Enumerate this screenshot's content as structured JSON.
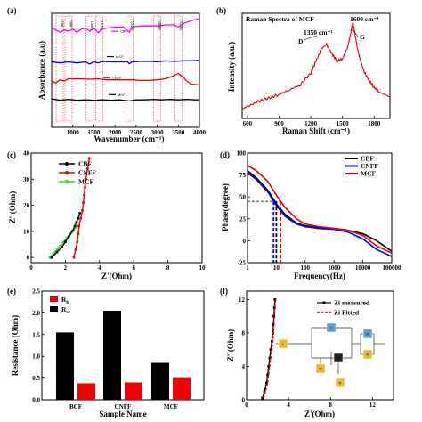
{
  "chart_data": [
    {
      "panel": "(a)",
      "type": "line",
      "xlabel": "Wavenumber (cm⁻¹)",
      "ylabel": "Absorbance (a.u)",
      "xlim": [
        500,
        4000
      ],
      "xticks": [
        1000,
        1500,
        2000,
        2500,
        3000,
        3500,
        4000
      ],
      "peak_labels": [
        {
          "x": 690,
          "label": "(690)"
        },
        {
          "x": 900,
          "label": "(900)"
        },
        {
          "x": 1400,
          "label": "(1400)"
        },
        {
          "x": 1626,
          "label": "(1626)"
        },
        {
          "x": 2340,
          "label": "(2340)"
        },
        {
          "x": 3000,
          "label": "(3000)"
        },
        {
          "x": 3500,
          "label": "(3500)"
        }
      ],
      "series": [
        {
          "name": "CBF",
          "color": "#ff00ff",
          "offset": 4.2,
          "x": [
            500,
            600,
            700,
            800,
            900,
            1000,
            1100,
            1200,
            1300,
            1400,
            1500,
            1600,
            1700,
            1800,
            2000,
            2200,
            2340,
            2400,
            2600,
            2800,
            3000,
            3200,
            3400,
            3500,
            3600,
            3800,
            4000
          ],
          "y": [
            0.55,
            0.4,
            0.3,
            0.42,
            0.35,
            0.45,
            0.3,
            0.45,
            0.5,
            0.35,
            0.5,
            0.28,
            0.45,
            0.5,
            0.55,
            0.55,
            0.3,
            0.55,
            0.6,
            0.6,
            0.6,
            0.65,
            0.65,
            0.55,
            0.7,
            0.85,
            0.95
          ]
        },
        {
          "name": "MCF",
          "color": "#0000ee",
          "offset": 3.0,
          "x": [
            500,
            700,
            900,
            1100,
            1300,
            1400,
            1500,
            1600,
            1700,
            1900,
            2100,
            2300,
            2340,
            2400,
            2600,
            2800,
            3000,
            3200,
            3400,
            3600,
            3800,
            4000
          ],
          "y": [
            0.1,
            0.05,
            0.1,
            0.05,
            0.1,
            0.0,
            0.1,
            0.05,
            0.12,
            0.1,
            0.1,
            0.1,
            0.0,
            0.1,
            0.12,
            0.12,
            0.1,
            0.15,
            0.12,
            0.15,
            0.15,
            0.18
          ]
        },
        {
          "name": "CNFF",
          "color": "#ee0000",
          "offset": 2.0,
          "x": [
            500,
            600,
            700,
            800,
            900,
            1000,
            1200,
            1400,
            1600,
            1800,
            2000,
            2200,
            2400,
            2600,
            2800,
            3000,
            3200,
            3400,
            3500,
            3600,
            3700,
            3800,
            4000
          ],
          "y": [
            0.2,
            0.1,
            0.25,
            0.2,
            0.3,
            0.3,
            0.3,
            0.28,
            0.3,
            0.25,
            0.25,
            0.25,
            0.25,
            0.22,
            0.22,
            0.25,
            0.3,
            0.45,
            0.55,
            0.4,
            0.2,
            0.05,
            0.0
          ]
        },
        {
          "name": "MCF",
          "color": "#000000",
          "offset": 1.2,
          "x": [
            500,
            700,
            900,
            1100,
            1300,
            1500,
            1700,
            1900,
            2100,
            2340,
            2500,
            2700,
            2900,
            3100,
            3300,
            3500,
            3700,
            3900,
            4000
          ],
          "y": [
            0.15,
            0.08,
            0.12,
            0.08,
            0.1,
            0.08,
            0.1,
            0.08,
            0.1,
            0.05,
            0.1,
            0.1,
            0.12,
            0.1,
            0.12,
            0.1,
            0.12,
            0.1,
            0.1
          ]
        }
      ]
    },
    {
      "panel": "(b)",
      "type": "line",
      "title": "Raman Spectra of MCF",
      "xlabel": "Raman Shift (cm⁻¹)",
      "ylabel": "Intensity (a.u.)",
      "xlim": [
        550,
        1950
      ],
      "xticks": [
        600,
        900,
        1200,
        1500,
        1800
      ],
      "annotations": [
        {
          "label": "1350 cm⁻¹",
          "band": "D",
          "x": 1350
        },
        {
          "label": "1600 cm⁻¹",
          "band": "G",
          "x": 1600
        }
      ],
      "series": [
        {
          "color": "#ee0000",
          "x": [
            550,
            600,
            700,
            800,
            900,
            1000,
            1100,
            1200,
            1250,
            1300,
            1350,
            1400,
            1450,
            1500,
            1550,
            1580,
            1600,
            1620,
            1650,
            1700,
            1750,
            1800,
            1850,
            1950
          ],
          "y": [
            0.28,
            0.3,
            0.34,
            0.37,
            0.4,
            0.44,
            0.48,
            0.58,
            0.68,
            0.78,
            0.82,
            0.74,
            0.68,
            0.7,
            0.8,
            0.92,
            1.0,
            0.9,
            0.75,
            0.6,
            0.52,
            0.46,
            0.42,
            0.38
          ]
        }
      ]
    },
    {
      "panel": "(c)",
      "type": "scatter",
      "xlabel": "Z'(Ohm)",
      "ylabel": "Z''(Ohm)",
      "xlim": [
        0,
        10
      ],
      "ylim": [
        -2,
        40
      ],
      "xticks": [
        0,
        2,
        4,
        6,
        8,
        10
      ],
      "yticks": [
        0,
        10,
        20,
        30,
        40
      ],
      "series": [
        {
          "name": "CBF",
          "color": "#000000",
          "x": [
            1.2,
            1.5,
            1.8,
            2.0,
            2.2,
            2.4,
            2.55,
            2.65,
            2.75,
            2.85
          ],
          "y": [
            0.0,
            2.0,
            4.0,
            6.0,
            8.0,
            10.0,
            12.0,
            13.5,
            15.0,
            17.0
          ]
        },
        {
          "name": "CNFF",
          "color": "#ee0000",
          "x": [
            2.5,
            2.6,
            2.7,
            2.75,
            2.8,
            2.9,
            3.0,
            3.05,
            3.1,
            3.15,
            3.2,
            3.3,
            3.4
          ],
          "y": [
            0.0,
            3.0,
            6.0,
            9.0,
            12.0,
            15.0,
            18.0,
            21.0,
            24.0,
            27.0,
            30.0,
            34.0,
            38.0
          ]
        },
        {
          "name": "MCF",
          "color": "#22dd22",
          "x": [
            1.1,
            1.3,
            1.5,
            1.7,
            1.9,
            2.1,
            2.3,
            2.5,
            2.7
          ],
          "y": [
            0.0,
            1.5,
            3.0,
            4.5,
            6.0,
            7.5,
            9.0,
            10.5,
            12.0
          ]
        }
      ]
    },
    {
      "panel": "(d)",
      "type": "line",
      "xlabel": "Frequency(Hz)",
      "ylabel": "Phase(degree)",
      "xscale": "log",
      "xlim": [
        1,
        100000
      ],
      "ylim": [
        -25,
        100
      ],
      "xticks": [
        1,
        10,
        100,
        1000,
        10000,
        100000
      ],
      "yticks": [
        -25,
        0,
        25,
        50,
        75,
        100
      ],
      "series": [
        {
          "name": "CBF",
          "color": "#000000",
          "x": [
            1,
            2,
            5,
            10,
            20,
            50,
            100,
            300,
            1000,
            3000,
            10000,
            30000,
            100000
          ],
          "y": [
            80,
            72,
            58,
            42,
            30,
            20,
            17,
            15,
            14,
            12,
            8,
            0,
            -12
          ]
        },
        {
          "name": "CNFF",
          "color": "#0000ee",
          "x": [
            1,
            2,
            5,
            10,
            20,
            50,
            100,
            300,
            1000,
            3000,
            10000,
            30000,
            100000
          ],
          "y": [
            78,
            70,
            56,
            40,
            28,
            19,
            16,
            14,
            13,
            10,
            2,
            -10,
            -18
          ]
        },
        {
          "name": "MCF",
          "color": "#ee0000",
          "x": [
            1,
            2,
            5,
            10,
            20,
            50,
            100,
            300,
            1000,
            3000,
            10000,
            30000,
            100000
          ],
          "y": [
            86,
            80,
            68,
            52,
            38,
            25,
            19,
            16,
            14,
            12,
            6,
            -6,
            -14
          ]
        }
      ]
    },
    {
      "panel": "(e)",
      "type": "bar",
      "xlabel": "Sample Name",
      "ylabel": "Resistance (Ohm)",
      "ylim": [
        0,
        2.5
      ],
      "yticks": [
        0.0,
        0.5,
        1.0,
        1.5,
        2.0,
        2.5
      ],
      "categories": [
        "BCF",
        "CNFF",
        "MCF"
      ],
      "series": [
        {
          "name": "Rct",
          "color": "#000000",
          "values": [
            1.55,
            2.05,
            0.85
          ]
        },
        {
          "name": "Rb",
          "color": "#ee0000",
          "values": [
            0.38,
            0.4,
            0.5
          ]
        }
      ]
    },
    {
      "panel": "(f)",
      "type": "scatter",
      "xlabel": "Z'(Ohm)",
      "ylabel": "Z''(Ohm)",
      "xlim": [
        0,
        14
      ],
      "ylim": [
        0,
        13
      ],
      "xticks": [
        0,
        4,
        8,
        12
      ],
      "yticks": [
        0,
        4,
        8,
        12
      ],
      "series": [
        {
          "name": "Zi measured",
          "color": "#000000",
          "x": [
            1.5,
            1.7,
            1.9,
            2.0,
            2.1,
            2.2,
            2.3,
            2.4,
            2.5,
            2.55,
            2.6,
            2.65,
            2.7
          ],
          "y": [
            0.2,
            1.0,
            2.0,
            3.0,
            4.0,
            5.0,
            6.0,
            7.0,
            8.0,
            9.0,
            10.0,
            11.0,
            12.0
          ]
        },
        {
          "name": "Zi Fitted",
          "color": "#ee0000",
          "x": [
            1.6,
            1.8,
            2.0,
            2.1,
            2.2,
            2.3,
            2.4,
            2.5,
            2.55,
            2.6,
            2.65,
            2.7,
            2.75
          ],
          "y": [
            0.2,
            1.0,
            2.0,
            3.0,
            4.0,
            5.0,
            6.0,
            7.0,
            8.0,
            9.0,
            10.0,
            11.0,
            12.0
          ]
        }
      ],
      "circuit_elements": [
        "L",
        "C",
        "Q",
        "W",
        "R",
        "R",
        "R",
        "C",
        "R"
      ]
    }
  ]
}
